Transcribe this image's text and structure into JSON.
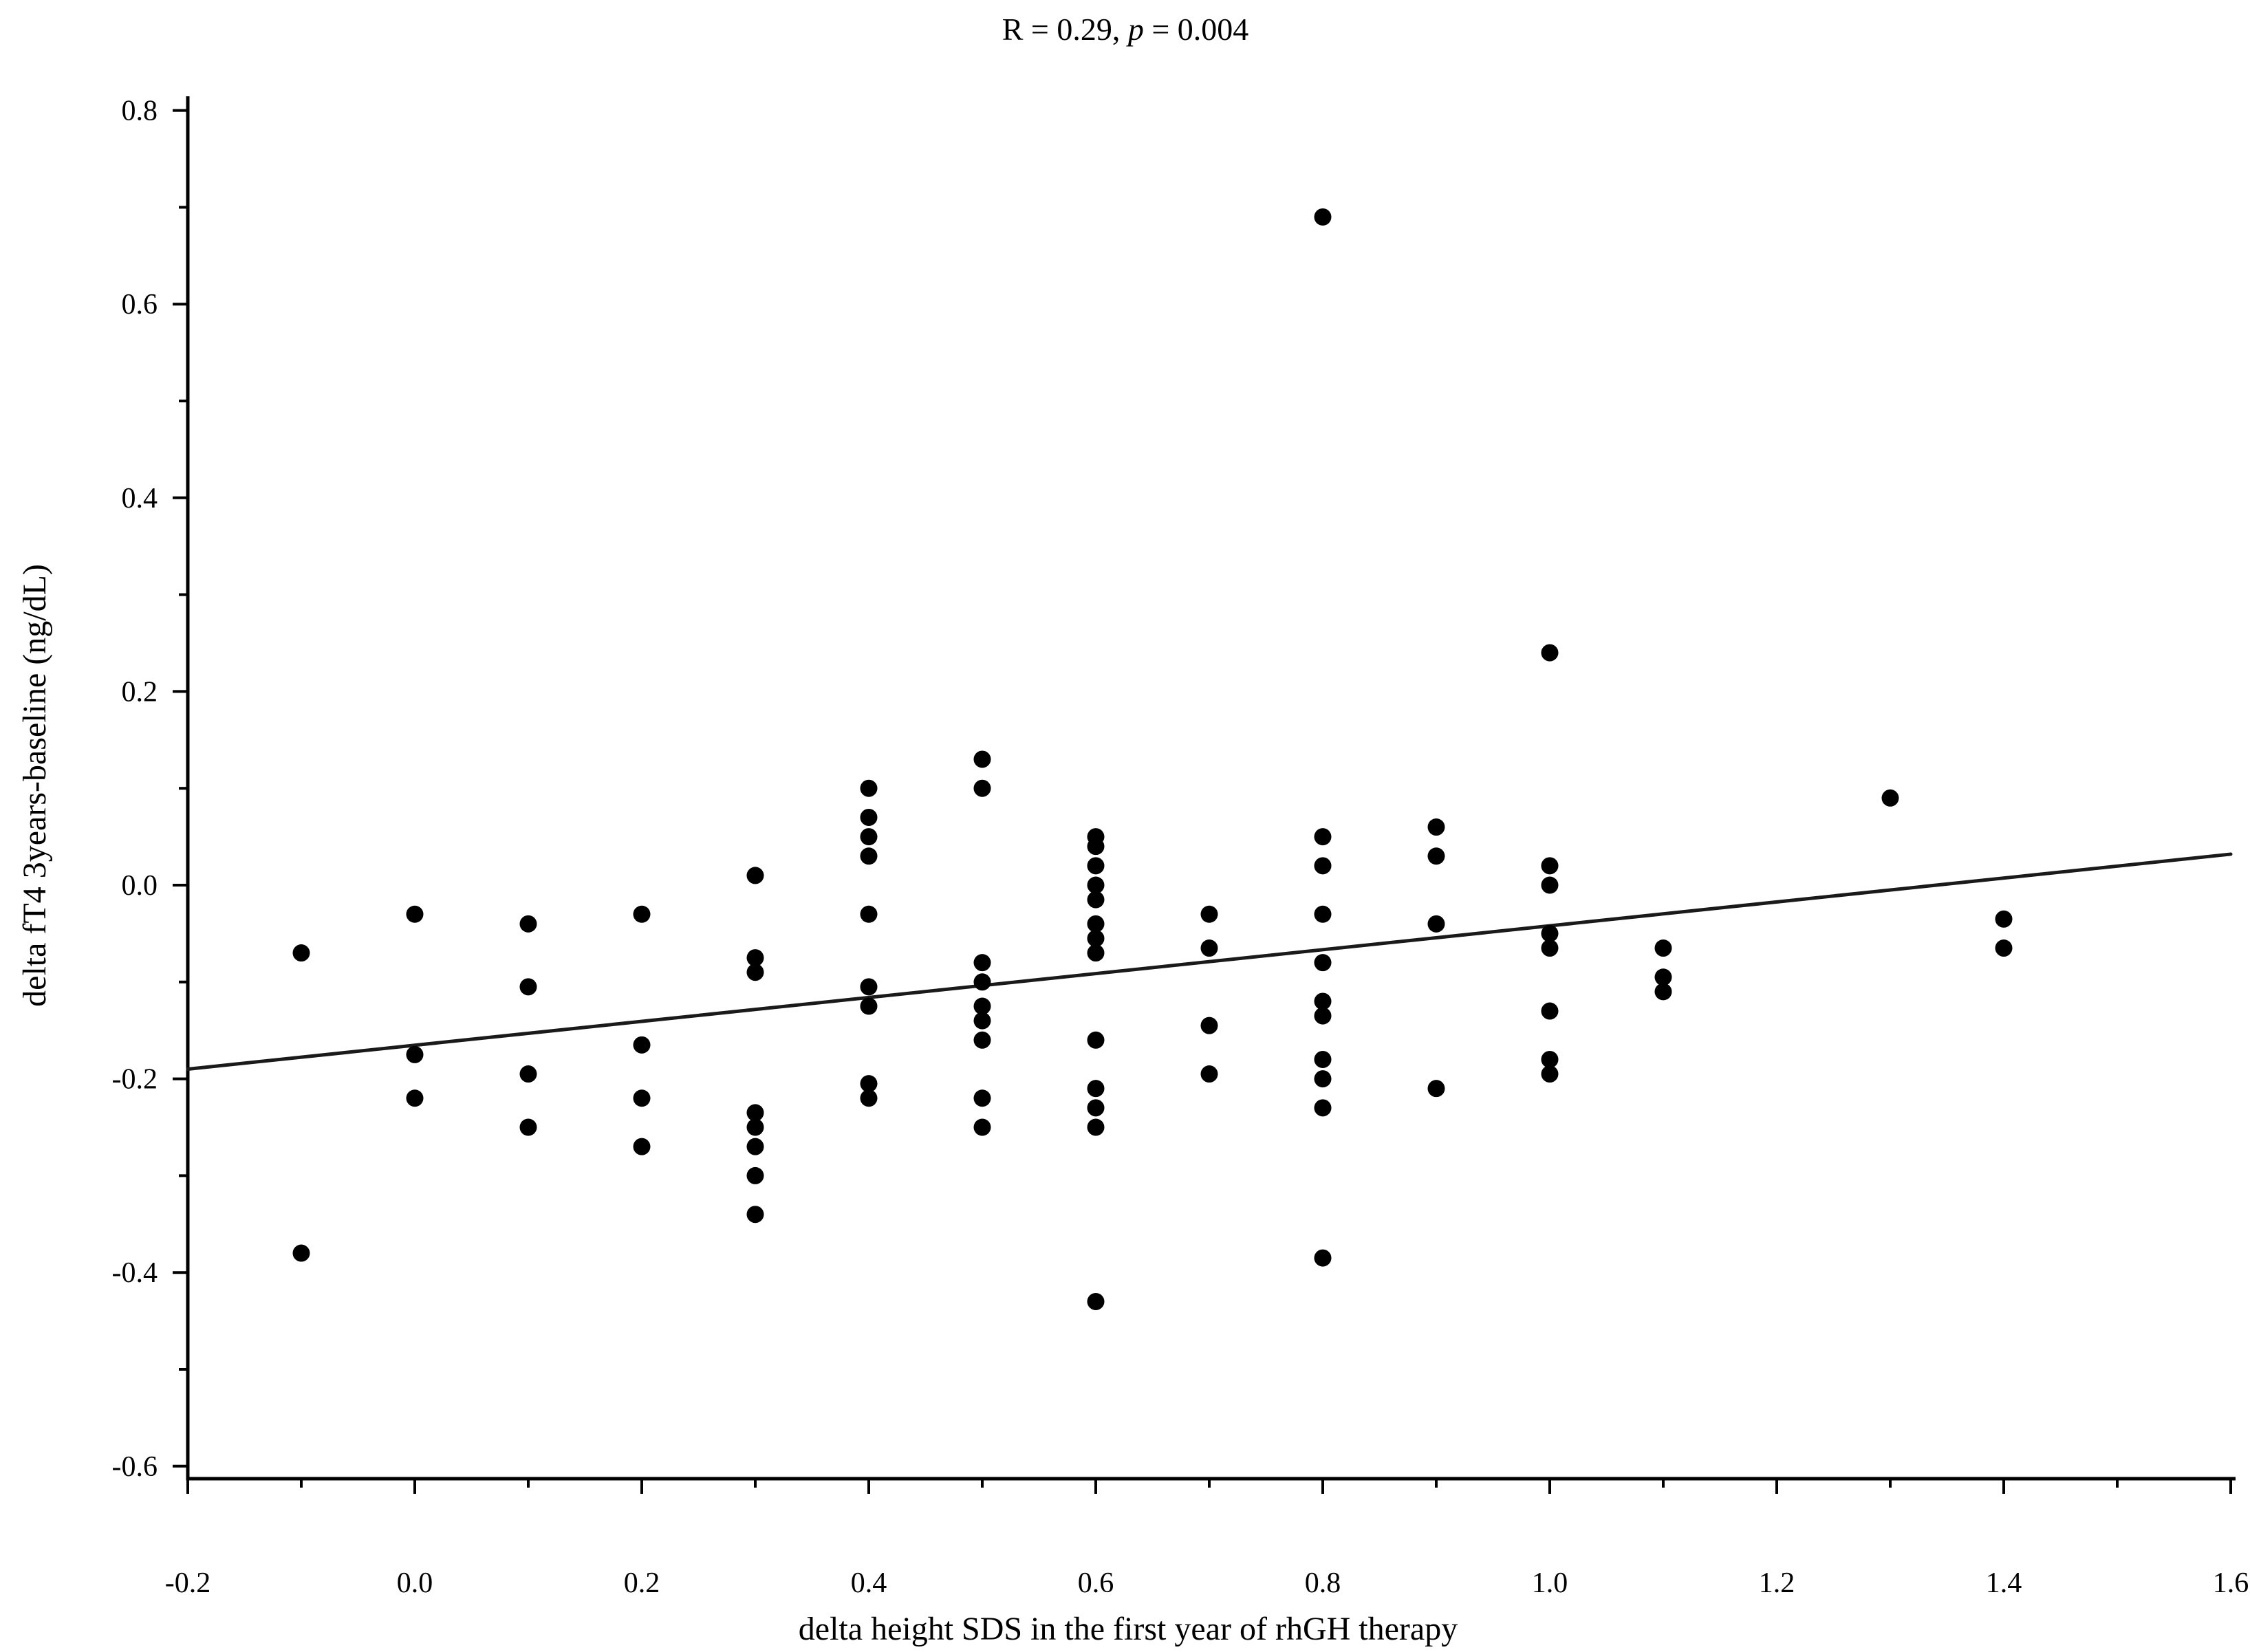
{
  "chart_data": {
    "type": "scatter",
    "title": "R = 0.29, p = 0.004",
    "title_parts": {
      "prefix": "R = 0.29, ",
      "italic": "p",
      "suffix": " = 0.004"
    },
    "xlabel": "delta height SDS in the first year of rhGH therapy",
    "ylabel": "delta fT4 3years-baseline (ng/dL)",
    "xlim": [
      -0.2,
      1.6
    ],
    "ylim": [
      -0.6,
      0.8
    ],
    "x_tick_labels": [
      "-0.2",
      "0.0",
      "0.2",
      "0.4",
      "0.6",
      "0.8",
      "1.0",
      "1.2",
      "1.4",
      "1.6"
    ],
    "y_tick_labels": [
      "-0.6",
      "-0.4",
      "-0.2",
      "0.0",
      "0.2",
      "0.4",
      "0.6",
      "0.8"
    ],
    "minor_tick_step": 0.1,
    "grid": false,
    "legend": false,
    "marker_color": "#000000",
    "line_color": "#1a1a1a",
    "points": [
      [
        -0.1,
        -0.07
      ],
      [
        -0.1,
        -0.38
      ],
      [
        0.0,
        -0.03
      ],
      [
        0.0,
        -0.175
      ],
      [
        0.0,
        -0.22
      ],
      [
        0.1,
        -0.04
      ],
      [
        0.1,
        -0.105
      ],
      [
        0.1,
        -0.195
      ],
      [
        0.1,
        -0.25
      ],
      [
        0.2,
        -0.03
      ],
      [
        0.2,
        -0.165
      ],
      [
        0.2,
        -0.22
      ],
      [
        0.2,
        -0.27
      ],
      [
        0.3,
        0.01
      ],
      [
        0.3,
        -0.075
      ],
      [
        0.3,
        -0.09
      ],
      [
        0.3,
        -0.235
      ],
      [
        0.3,
        -0.25
      ],
      [
        0.3,
        -0.27
      ],
      [
        0.3,
        -0.3
      ],
      [
        0.3,
        -0.34
      ],
      [
        0.4,
        0.1
      ],
      [
        0.4,
        0.07
      ],
      [
        0.4,
        0.05
      ],
      [
        0.4,
        0.03
      ],
      [
        0.4,
        -0.03
      ],
      [
        0.4,
        -0.105
      ],
      [
        0.4,
        -0.125
      ],
      [
        0.4,
        -0.205
      ],
      [
        0.4,
        -0.22
      ],
      [
        0.5,
        0.13
      ],
      [
        0.5,
        0.1
      ],
      [
        0.5,
        -0.08
      ],
      [
        0.5,
        -0.1
      ],
      [
        0.5,
        -0.125
      ],
      [
        0.5,
        -0.14
      ],
      [
        0.5,
        -0.16
      ],
      [
        0.5,
        -0.22
      ],
      [
        0.5,
        -0.25
      ],
      [
        0.6,
        0.05
      ],
      [
        0.6,
        0.04
      ],
      [
        0.6,
        0.02
      ],
      [
        0.6,
        0.0
      ],
      [
        0.6,
        -0.015
      ],
      [
        0.6,
        -0.04
      ],
      [
        0.6,
        -0.055
      ],
      [
        0.6,
        -0.07
      ],
      [
        0.6,
        -0.16
      ],
      [
        0.6,
        -0.21
      ],
      [
        0.6,
        -0.23
      ],
      [
        0.6,
        -0.25
      ],
      [
        0.6,
        -0.43
      ],
      [
        0.7,
        -0.03
      ],
      [
        0.7,
        -0.065
      ],
      [
        0.7,
        -0.145
      ],
      [
        0.7,
        -0.195
      ],
      [
        0.8,
        0.69
      ],
      [
        0.8,
        0.05
      ],
      [
        0.8,
        0.02
      ],
      [
        0.8,
        -0.03
      ],
      [
        0.8,
        -0.08
      ],
      [
        0.8,
        -0.12
      ],
      [
        0.8,
        -0.135
      ],
      [
        0.8,
        -0.18
      ],
      [
        0.8,
        -0.2
      ],
      [
        0.8,
        -0.23
      ],
      [
        0.8,
        -0.385
      ],
      [
        0.9,
        0.06
      ],
      [
        0.9,
        0.03
      ],
      [
        0.9,
        -0.04
      ],
      [
        0.9,
        -0.21
      ],
      [
        1.0,
        0.24
      ],
      [
        1.0,
        0.02
      ],
      [
        1.0,
        0.0
      ],
      [
        1.0,
        -0.05
      ],
      [
        1.0,
        -0.065
      ],
      [
        1.0,
        -0.13
      ],
      [
        1.0,
        -0.18
      ],
      [
        1.0,
        -0.195
      ],
      [
        1.1,
        -0.065
      ],
      [
        1.1,
        -0.095
      ],
      [
        1.1,
        -0.11
      ],
      [
        1.3,
        0.09
      ],
      [
        1.4,
        -0.035
      ],
      [
        1.4,
        -0.065
      ]
    ],
    "trend_line": {
      "x1": -0.2,
      "y1": -0.19,
      "x2": 1.6,
      "y2": 0.032
    }
  }
}
